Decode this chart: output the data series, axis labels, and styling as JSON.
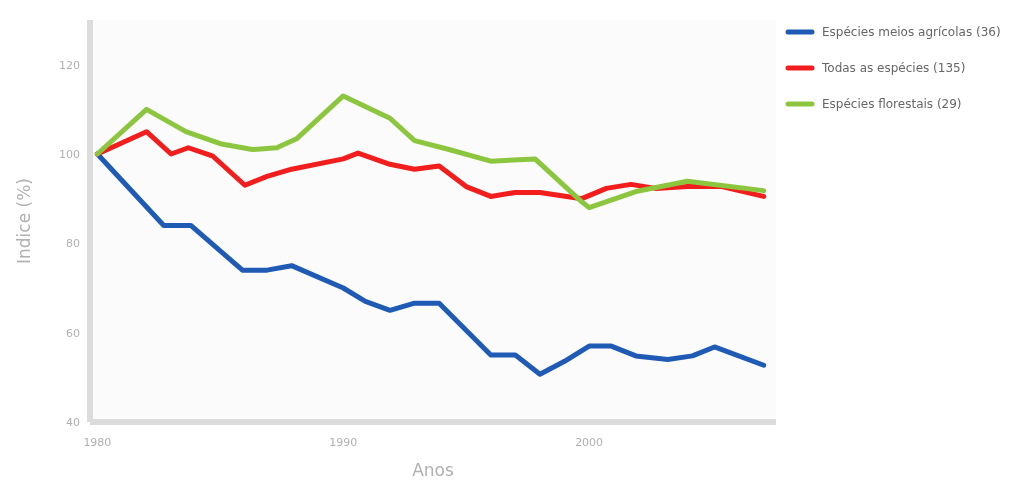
{
  "chart_data": {
    "type": "line",
    "xlabel": "Anos",
    "ylabel": "Indice (%)",
    "xlim": [
      1979.7,
      2007.6
    ],
    "xticks": [
      1980,
      1990,
      2000
    ],
    "ylim": [
      40,
      130
    ],
    "yticks": [
      40,
      60,
      80,
      100,
      120
    ],
    "grid": false,
    "legend": "top right",
    "line_style": "solid",
    "marker": "none",
    "series": [
      {
        "name": "Espécies meios agrícolas (36)",
        "color": "#1f5bb5",
        "x": [
          1980,
          1982.7,
          1983.8,
          1985.9,
          1986.9,
          1987.9,
          1990,
          1990.9,
          1991.9,
          1992.9,
          1993.9,
          1996,
          1997,
          1998,
          1999,
          2000,
          2000.9,
          2001.9,
          2003.2,
          2004.2,
          2005.1,
          2007.1
        ],
        "values": [
          100,
          84,
          84,
          74,
          74,
          75,
          70,
          67,
          65,
          66.6,
          66.6,
          55,
          55,
          50.7,
          53.6,
          57,
          57,
          54.8,
          54,
          54.8,
          56.8,
          52.7
        ]
      },
      {
        "name": "Todas as espécies (135)",
        "color": "#f21d1d",
        "x": [
          1980,
          1982,
          1983,
          1983.7,
          1984.7,
          1986,
          1986.9,
          1987.9,
          1990,
          1990.6,
          1991.9,
          1992.9,
          1993.9,
          1995,
          1996,
          1997,
          1998,
          1999.7,
          2000.7,
          2001.7,
          2002.7,
          2004,
          2005.4,
          2007.1
        ],
        "values": [
          100,
          105,
          100,
          101.4,
          99.5,
          93,
          95,
          96.6,
          98.9,
          100.2,
          97.7,
          96.6,
          97.3,
          92.7,
          90.5,
          91.4,
          91.4,
          90,
          92.3,
          93.2,
          92.3,
          92.7,
          92.7,
          90.5
        ]
      },
      {
        "name": "Espécies florestais (29)",
        "color": "#8cc63f",
        "x": [
          1980,
          1982,
          1983.6,
          1985,
          1986.3,
          1987.3,
          1988.1,
          1990,
          1991.9,
          1992.9,
          1994.3,
          1996,
          1997.8,
          1999.7,
          2000,
          2001.9,
          2004,
          2007.1
        ],
        "values": [
          100,
          110,
          105,
          102.3,
          101,
          101.4,
          103.4,
          113,
          108,
          103,
          101,
          98.4,
          98.9,
          89.3,
          88,
          91.6,
          93.9,
          91.8
        ]
      }
    ]
  }
}
